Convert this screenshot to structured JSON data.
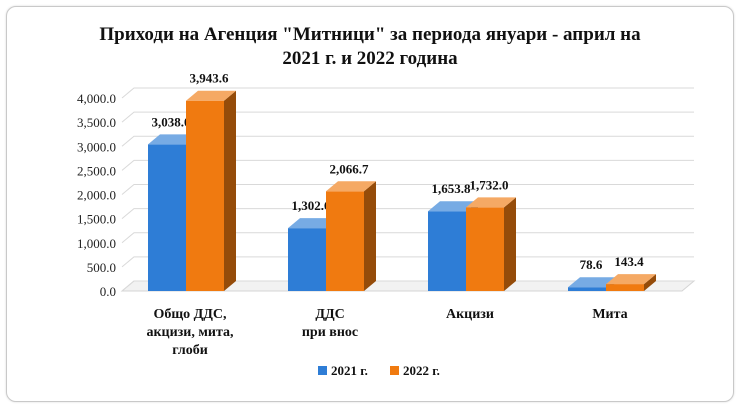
{
  "chart_data": {
    "type": "bar",
    "title_lines": [
      "Приходи на Агенция \"Митници\" за периода януари - април на",
      "2021 г. и 2022 година"
    ],
    "categories": [
      [
        "Общо ДДС,",
        "акцизи, мита,",
        "глоби"
      ],
      [
        "ДДС",
        "при внос"
      ],
      [
        "Акцизи"
      ],
      [
        "Мита"
      ]
    ],
    "series": [
      {
        "name": "2021 г.",
        "values": [
          3038.0,
          1302.6,
          1653.8,
          78.6
        ],
        "labels": [
          "3,038.0",
          "1,302.6",
          "1,653.8",
          "78.6"
        ],
        "color": "#2e7dd6"
      },
      {
        "name": "2022 г.",
        "values": [
          3943.6,
          2066.7,
          1732.0,
          143.4
        ],
        "labels": [
          "3,943.6",
          "2,066.7",
          "1,732.0",
          "143.4"
        ],
        "color": "#f07a10"
      }
    ],
    "ylim": [
      0,
      4000
    ],
    "y_ticks": [
      "0.0",
      "500.0",
      "1,000.0",
      "1,500.0",
      "2,000.0",
      "2,500.0",
      "3,000.0",
      "3,500.0",
      "4,000.0"
    ],
    "grid": true,
    "legend_position": "bottom",
    "style": "3d"
  }
}
